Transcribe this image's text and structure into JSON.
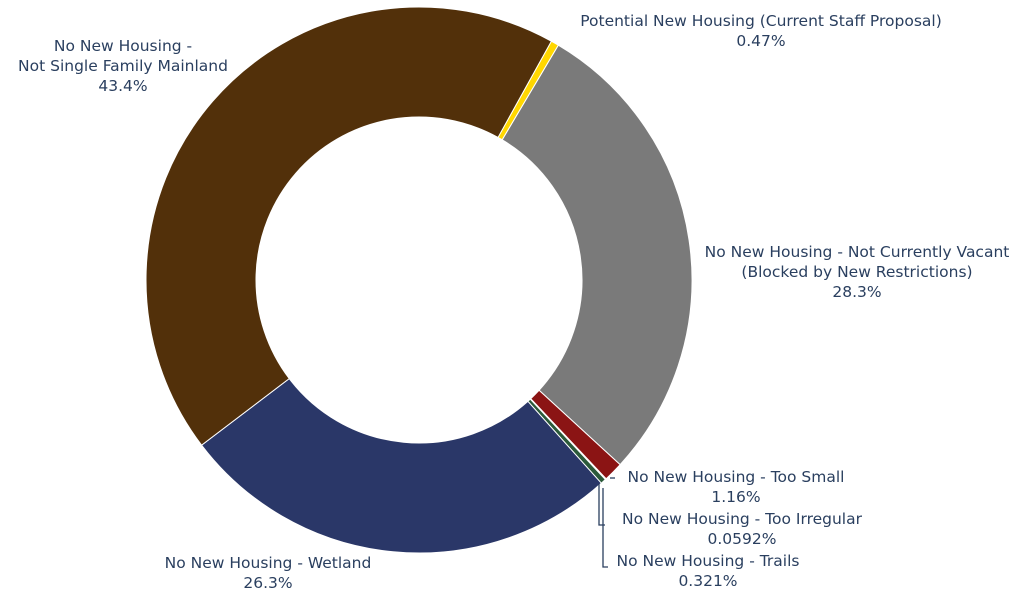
{
  "chart_data": {
    "type": "pie",
    "hole": true,
    "slices": [
      {
        "label_lines": [
          "Potential New Housing (Current Staff Proposal)"
        ],
        "percent_text": "0.47%",
        "value": 0.47,
        "color": "#ffd700"
      },
      {
        "label_lines": [
          "No New Housing - Not Currently Vacant",
          "(Blocked by New Restrictions)"
        ],
        "percent_text": "28.3%",
        "value": 28.3,
        "color": "#7a7a7a"
      },
      {
        "label_lines": [
          "No New Housing - Too Small"
        ],
        "percent_text": "1.16%",
        "value": 1.16,
        "color": "#8b1414"
      },
      {
        "label_lines": [
          "No New Housing - Too Irregular"
        ],
        "percent_text": "0.0592%",
        "value": 0.0592,
        "color": "#1f6b2c"
      },
      {
        "label_lines": [
          "No New Housing - Trails"
        ],
        "percent_text": "0.321%",
        "value": 0.321,
        "color": "#2b5a3a"
      },
      {
        "label_lines": [
          "No New Housing - Wetland"
        ],
        "percent_text": "26.3%",
        "value": 26.3,
        "color": "#2a3768"
      },
      {
        "label_lines": [
          "No New Housing -",
          "Not Single Family Mainland"
        ],
        "percent_text": "43.4%",
        "value": 43.4,
        "color": "#52300a"
      }
    ]
  }
}
